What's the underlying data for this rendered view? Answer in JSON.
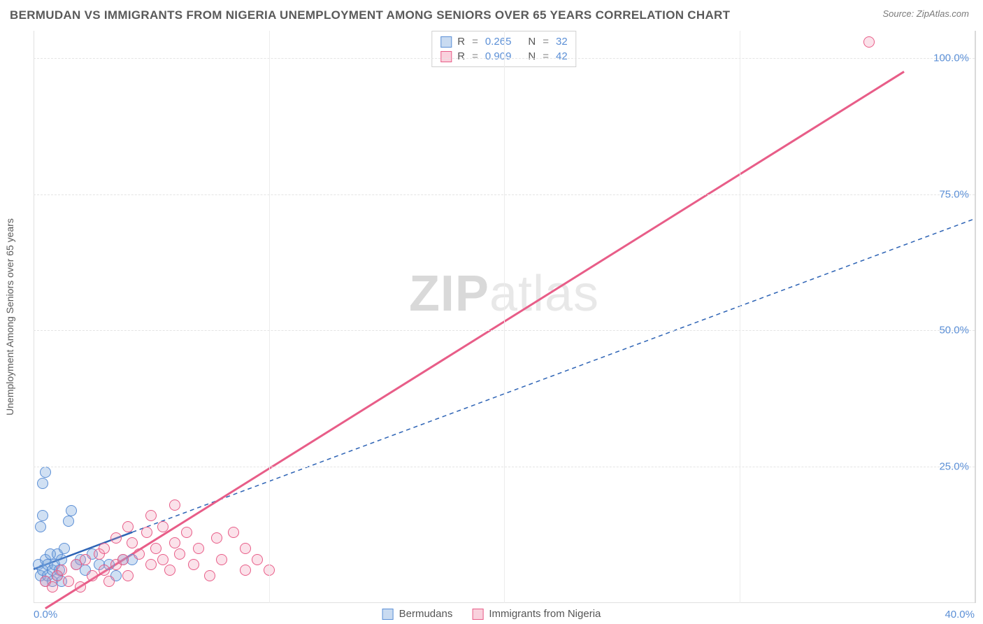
{
  "header": {
    "title": "BERMUDAN VS IMMIGRANTS FROM NIGERIA UNEMPLOYMENT AMONG SENIORS OVER 65 YEARS CORRELATION CHART",
    "source_prefix": "Source: ",
    "source_name": "ZipAtlas.com"
  },
  "watermark": {
    "zip": "ZIP",
    "atlas": "atlas"
  },
  "chart": {
    "type": "scatter",
    "y_axis_label": "Unemployment Among Seniors over 65 years",
    "background_color": "#ffffff",
    "grid_color": "#e4e4e4",
    "axis_label_color": "#5a5a5a",
    "tick_label_color": "#5b8fd6",
    "xlim": [
      0,
      40
    ],
    "ylim": [
      0,
      105
    ],
    "x_ticks": [
      {
        "v": 0,
        "label": "0.0%"
      },
      {
        "v": 10,
        "label": ""
      },
      {
        "v": 20,
        "label": ""
      },
      {
        "v": 30,
        "label": ""
      },
      {
        "v": 40,
        "label": "40.0%"
      }
    ],
    "y_ticks": [
      {
        "v": 25,
        "label": "25.0%"
      },
      {
        "v": 50,
        "label": "50.0%"
      },
      {
        "v": 75,
        "label": "75.0%"
      },
      {
        "v": 100,
        "label": "100.0%"
      }
    ],
    "series": [
      {
        "name": "Bermudans",
        "color_fill": "rgba(120,165,220,0.35)",
        "color_stroke": "#5b8fd6",
        "marker_class": "blue",
        "marker_size_px": 16,
        "r_value": "0.265",
        "n_value": "32",
        "trend": {
          "x1": 0,
          "y1": 6.2,
          "x2": 4.2,
          "y2": 13.0,
          "ext_x2": 40,
          "ext_y2": 70.5,
          "color": "#2d63b5",
          "dash": "6,5",
          "solid_width": 2.5
        },
        "points": [
          [
            0.2,
            7
          ],
          [
            0.3,
            5
          ],
          [
            0.4,
            6
          ],
          [
            0.5,
            4
          ],
          [
            0.5,
            8
          ],
          [
            0.6,
            5
          ],
          [
            0.6,
            7
          ],
          [
            0.7,
            9
          ],
          [
            0.8,
            6
          ],
          [
            0.8,
            4
          ],
          [
            0.9,
            7
          ],
          [
            1.0,
            5
          ],
          [
            1.0,
            9
          ],
          [
            1.1,
            6
          ],
          [
            1.2,
            8
          ],
          [
            1.2,
            4
          ],
          [
            1.3,
            10
          ],
          [
            0.3,
            14
          ],
          [
            0.4,
            16
          ],
          [
            0.4,
            22
          ],
          [
            0.5,
            24
          ],
          [
            1.5,
            15
          ],
          [
            1.6,
            17
          ],
          [
            1.8,
            7
          ],
          [
            2.0,
            8
          ],
          [
            2.2,
            6
          ],
          [
            2.5,
            9
          ],
          [
            2.8,
            7
          ],
          [
            3.2,
            7
          ],
          [
            3.5,
            5
          ],
          [
            3.8,
            8
          ],
          [
            4.2,
            8
          ]
        ]
      },
      {
        "name": "Immigrants from Nigeria",
        "color_fill": "rgba(240,140,170,0.25)",
        "color_stroke": "#e85d88",
        "marker_class": "pink",
        "marker_size_px": 16,
        "r_value": "0.909",
        "n_value": "42",
        "trend": {
          "x1": 0.5,
          "y1": -1,
          "x2": 37,
          "y2": 97.5,
          "color": "#e85d88",
          "solid_width": 3
        },
        "points": [
          [
            0.5,
            4
          ],
          [
            0.8,
            3
          ],
          [
            1.0,
            5
          ],
          [
            1.2,
            6
          ],
          [
            1.5,
            4
          ],
          [
            1.8,
            7
          ],
          [
            2.0,
            3
          ],
          [
            2.2,
            8
          ],
          [
            2.5,
            5
          ],
          [
            2.8,
            9
          ],
          [
            3.0,
            6
          ],
          [
            3.0,
            10
          ],
          [
            3.2,
            4
          ],
          [
            3.5,
            7
          ],
          [
            3.5,
            12
          ],
          [
            3.8,
            8
          ],
          [
            4.0,
            5
          ],
          [
            4.0,
            14
          ],
          [
            4.2,
            11
          ],
          [
            4.5,
            9
          ],
          [
            4.8,
            13
          ],
          [
            5.0,
            7
          ],
          [
            5.0,
            16
          ],
          [
            5.2,
            10
          ],
          [
            5.5,
            8
          ],
          [
            5.5,
            14
          ],
          [
            5.8,
            6
          ],
          [
            6.0,
            11
          ],
          [
            6.0,
            18
          ],
          [
            6.2,
            9
          ],
          [
            6.5,
            13
          ],
          [
            6.8,
            7
          ],
          [
            7.0,
            10
          ],
          [
            7.5,
            5
          ],
          [
            7.8,
            12
          ],
          [
            8.0,
            8
          ],
          [
            8.5,
            13
          ],
          [
            9.0,
            6
          ],
          [
            9.0,
            10
          ],
          [
            9.5,
            8
          ],
          [
            10.0,
            6
          ],
          [
            35.5,
            103
          ]
        ]
      }
    ],
    "legend_top": {
      "r_label": "R",
      "n_label": "N",
      "eq": "="
    },
    "legend_bottom": [
      {
        "swatch": "blue",
        "label": "Bermudans"
      },
      {
        "swatch": "pink",
        "label": "Immigrants from Nigeria"
      }
    ]
  }
}
